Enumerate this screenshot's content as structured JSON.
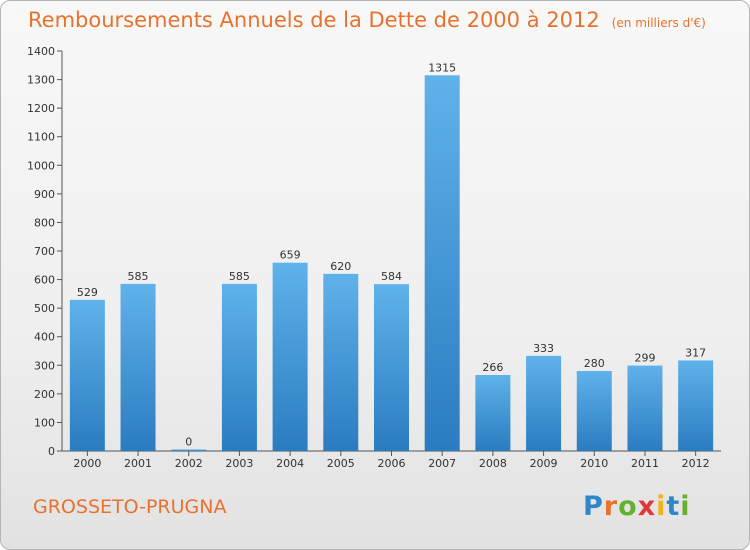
{
  "title": "Remboursements Annuels de la Dette de 2000 à 2012",
  "unit_note": "(en milliers d'€)",
  "commune": "GROSSETO-PRUGNA",
  "logo_text": "Proxiti",
  "colors": {
    "title": "#e8722d",
    "bar_light": "#5fb2ea",
    "bar_dark": "#2a7cc0",
    "logo_letters": [
      "#2f87c8",
      "#e8722d",
      "#67b02e",
      "#e33838",
      "#f1b418",
      "#2f87c8",
      "#67b02e"
    ]
  },
  "chart_data": {
    "type": "bar",
    "title": "Remboursements Annuels de la Dette de 2000 à 2012",
    "subtitle": "(en milliers d'€)",
    "xlabel": "",
    "ylabel": "",
    "categories": [
      "2000",
      "2001",
      "2002",
      "2003",
      "2004",
      "2005",
      "2006",
      "2007",
      "2008",
      "2009",
      "2010",
      "2011",
      "2012"
    ],
    "values": [
      529,
      585,
      0,
      585,
      659,
      620,
      584,
      1315,
      266,
      333,
      280,
      299,
      317
    ],
    "value_labels": [
      "529",
      "585",
      "0",
      "585",
      "659",
      "620",
      "584",
      "1315",
      "266",
      "333",
      "280",
      "299",
      "317"
    ],
    "ylim": [
      0,
      1400
    ],
    "yticks": [
      0,
      100,
      200,
      300,
      400,
      500,
      600,
      700,
      800,
      900,
      1000,
      1100,
      1200,
      1300,
      1400
    ],
    "grid": false,
    "legend": "none"
  }
}
